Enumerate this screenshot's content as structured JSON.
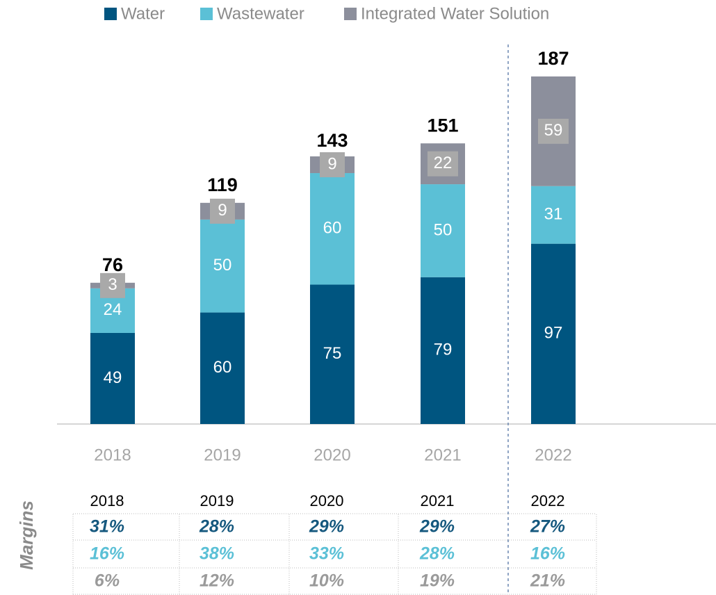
{
  "chart_data": {
    "type": "stacked_bar",
    "categories": [
      "2018",
      "2019",
      "2020",
      "2021",
      "2022"
    ],
    "series": [
      {
        "name": "Water",
        "color": "#005580",
        "values": [
          49,
          60,
          75,
          79,
          97
        ]
      },
      {
        "name": "Wastewater",
        "color": "#5bc0d6",
        "values": [
          24,
          50,
          60,
          50,
          31
        ]
      },
      {
        "name": "Integrated Water Solution",
        "color": "#8c8f9c",
        "values": [
          3,
          9,
          9,
          22,
          59
        ]
      }
    ],
    "totals": [
      76,
      119,
      143,
      151,
      187
    ]
  },
  "margins": {
    "title": "Margins",
    "header": [
      "2018",
      "2019",
      "2020",
      "2021",
      "2022"
    ],
    "row_colors": [
      "#15587e",
      "#5bc0d6",
      "#9a9a9a"
    ],
    "rows": [
      [
        "31%",
        "28%",
        "29%",
        "29%",
        "27%"
      ],
      [
        "16%",
        "38%",
        "33%",
        "28%",
        "16%"
      ],
      [
        "6%",
        "12%",
        "10%",
        "19%",
        "21%"
      ]
    ]
  }
}
